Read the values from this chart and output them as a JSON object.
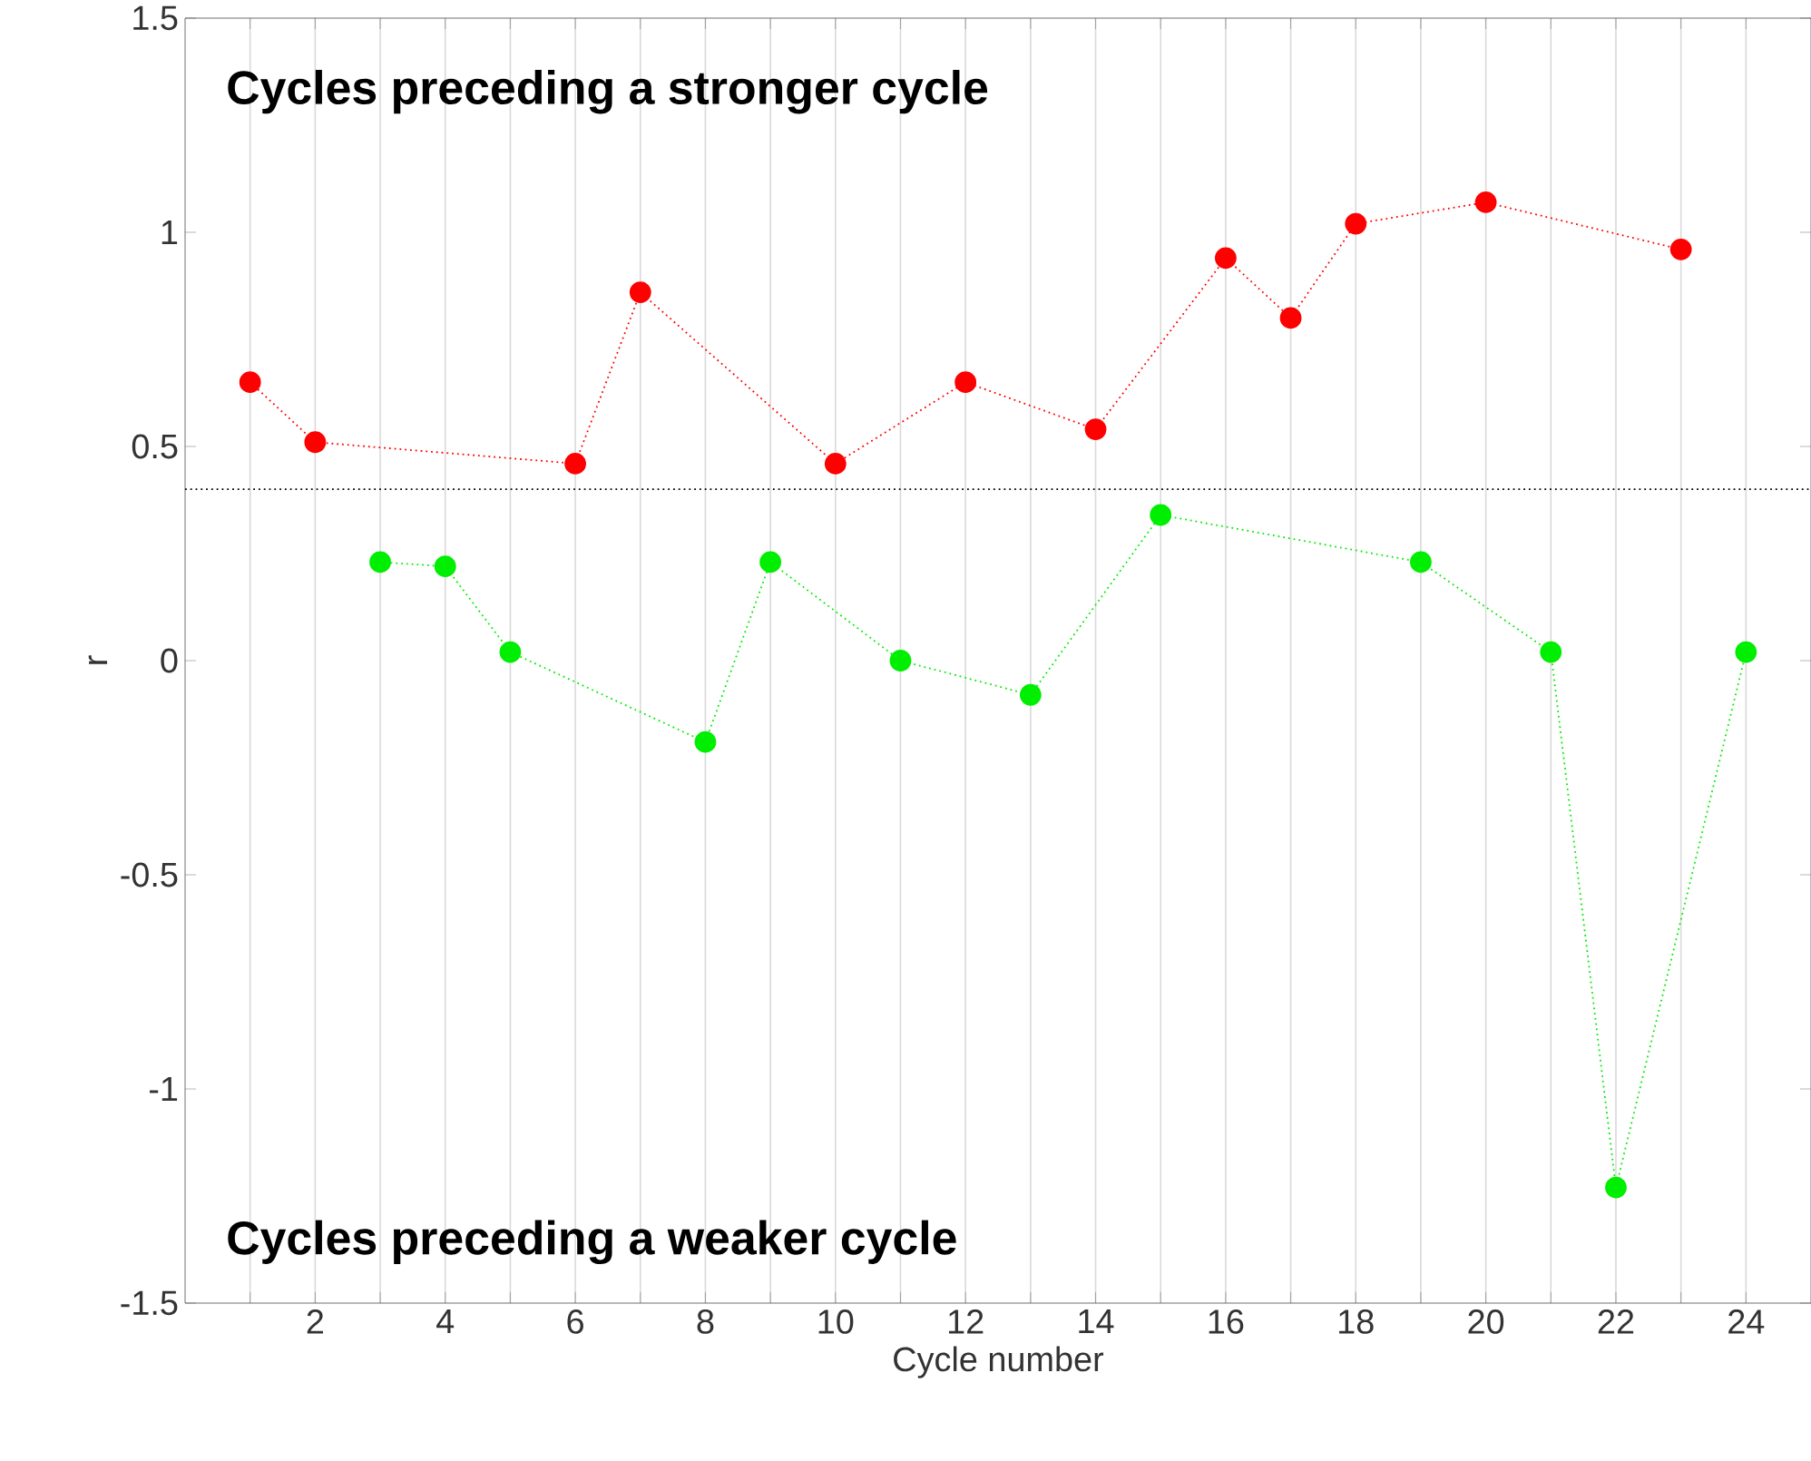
{
  "chart_data": {
    "type": "line",
    "xlabel": "Cycle number",
    "ylabel": "r",
    "annotations": [
      "Cycles preceding a stronger cycle",
      "Cycles preceding a weaker cycle"
    ],
    "series": [
      {
        "color": "#ff0000",
        "x": [
          1,
          2,
          6,
          7,
          10,
          12,
          14,
          16,
          17,
          18,
          20,
          23
        ],
        "values": [
          0.65,
          0.51,
          0.46,
          0.86,
          0.46,
          0.65,
          0.54,
          0.94,
          0.8,
          1.02,
          1.07,
          0.96
        ]
      },
      {
        "color": "#00ee00",
        "x": [
          3,
          4,
          5,
          8,
          9,
          11,
          13,
          15,
          19,
          21,
          22,
          24
        ],
        "values": [
          0.23,
          0.22,
          0.02,
          -0.19,
          0.23,
          0.0,
          -0.08,
          0.34,
          0.23,
          0.02,
          -1.23,
          0.02
        ]
      }
    ],
    "xlim": [
      0,
      25
    ],
    "ylim": [
      -1.5,
      1.5
    ],
    "xticks": [
      {
        "value": 1,
        "label": null
      },
      2,
      {
        "value": 3,
        "label": null
      },
      4,
      {
        "value": 5,
        "label": null
      },
      6,
      {
        "value": 7,
        "label": null
      },
      8,
      {
        "value": 9,
        "label": null
      },
      10,
      {
        "value": 11,
        "label": null
      },
      12,
      {
        "value": 13,
        "label": null
      },
      14,
      {
        "value": 15,
        "label": null
      },
      16,
      {
        "value": 17,
        "label": null
      },
      18,
      {
        "value": 19,
        "label": null
      },
      20,
      {
        "value": 21,
        "label": null
      },
      22,
      {
        "value": 23,
        "label": null
      },
      24
    ],
    "yticks": [
      -1.5,
      -1,
      -0.5,
      0,
      0.5,
      1,
      1.5
    ],
    "ref_lines": [
      {
        "axis": "y",
        "value": 0.4,
        "color": "#000000",
        "line_style": "dotted"
      }
    ],
    "grid": "x",
    "marker": "circle",
    "line_style": "dotted"
  }
}
